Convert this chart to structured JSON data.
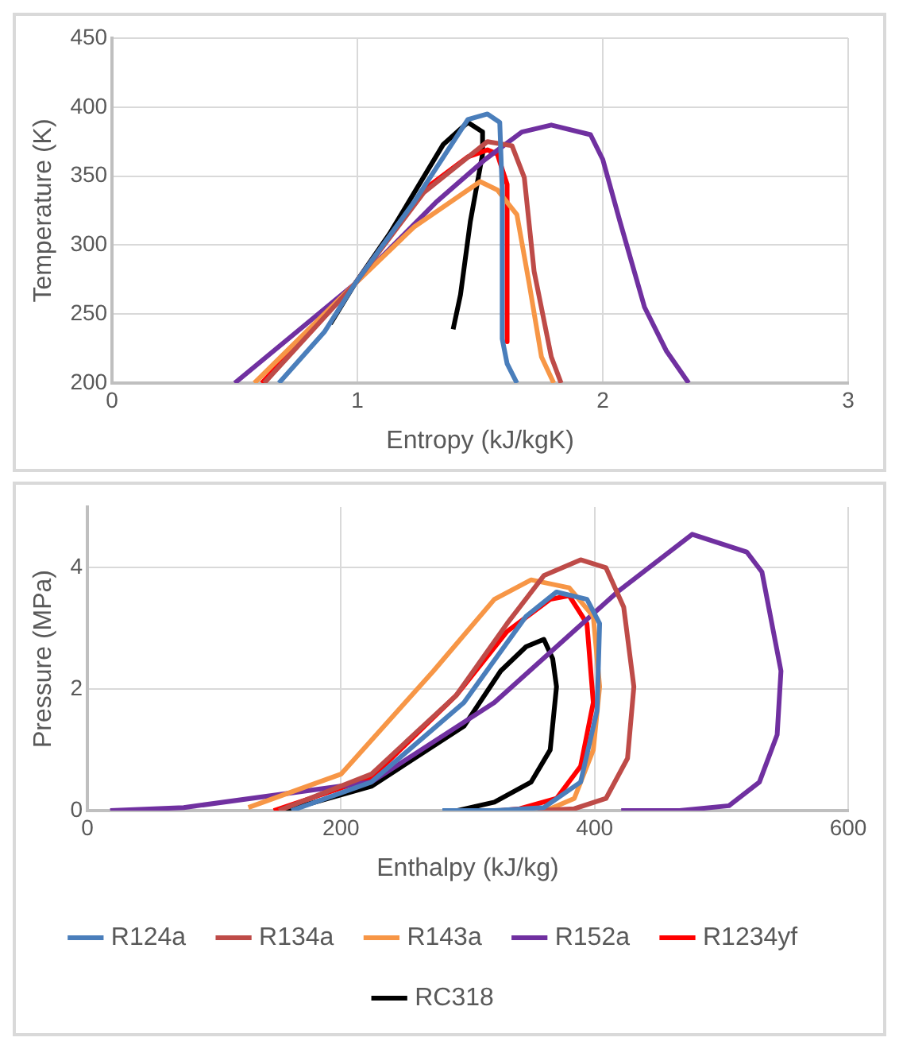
{
  "chart_data": [
    {
      "type": "line",
      "xlabel": "Entropy (kJ/kgK)",
      "ylabel": "Temperature (K)",
      "xlim": [
        0,
        3
      ],
      "xticks": [
        0,
        1,
        2,
        3
      ],
      "ylim": [
        200,
        450
      ],
      "yticks": [
        200,
        250,
        300,
        350,
        400,
        450
      ],
      "grid": true,
      "marker": "none",
      "line_style": "solid",
      "series": [
        {
          "color": "#4a7ebb",
          "x": [
            0.68,
            0.865,
            0.99,
            1.23,
            1.45,
            1.53,
            1.58,
            1.59,
            1.59,
            1.61,
            1.65
          ],
          "values": [
            200,
            237,
            272,
            331,
            391,
            395,
            389,
            340,
            232,
            214,
            200
          ]
        },
        {
          "color": "#be4b48",
          "x": [
            0.62,
            0.99,
            1.27,
            1.53,
            1.63,
            1.68,
            1.72,
            1.79,
            1.83
          ],
          "values": [
            200,
            272,
            338,
            375,
            372,
            349,
            281,
            219,
            200
          ]
        },
        {
          "color": "#f79646",
          "x": [
            0.58,
            0.99,
            1.23,
            1.5,
            1.57,
            1.65,
            1.7,
            1.75,
            1.8
          ],
          "values": [
            200,
            272,
            313,
            346,
            340,
            322,
            272,
            219,
            200
          ]
        },
        {
          "color": "#7030a0",
          "x": [
            0.5,
            0.99,
            1.32,
            1.52,
            1.67,
            1.79,
            1.95,
            2.0,
            2.07,
            2.17,
            2.26,
            2.35
          ],
          "values": [
            200,
            272,
            331,
            362,
            382,
            387,
            380,
            362,
            317,
            255,
            223,
            200
          ]
        },
        {
          "color": "#ff0000",
          "x": [
            0.61,
            0.99,
            1.27,
            1.45,
            1.53,
            1.57,
            1.61,
            1.61
          ],
          "values": [
            200,
            272,
            340,
            364,
            369,
            366,
            344,
            230
          ]
        },
        {
          "color": "#000000",
          "x": [
            0.89,
            0.99,
            1.13,
            1.35,
            1.45,
            1.51,
            1.51,
            1.46,
            1.42,
            1.39
          ],
          "values": [
            243,
            272,
            308,
            373,
            389,
            382,
            366,
            317,
            264,
            239
          ]
        }
      ]
    },
    {
      "type": "line",
      "xlabel": "Enthalpy (kJ/kg)",
      "ylabel": "Pressure (MPa)",
      "xlim": [
        0,
        600
      ],
      "xticks": [
        0,
        200,
        400,
        600
      ],
      "ylim": [
        0,
        5
      ],
      "yticks": [
        0,
        2,
        4
      ],
      "grid": true,
      "marker": "none",
      "line_style": "solid",
      "legend": "bottom",
      "series": [
        {
          "name": "R124a",
          "color": "#4a7ebb",
          "x": [
            161,
            224,
            297,
            346,
            370,
            394,
            404,
            402,
            389,
            360,
            321,
            280
          ],
          "values": [
            0,
            0.47,
            1.78,
            3.2,
            3.6,
            3.48,
            3.08,
            1.65,
            0.47,
            0.05,
            0,
            0
          ]
        },
        {
          "name": "R134a",
          "color": "#be4b48",
          "x": [
            151,
            224,
            291,
            331,
            360,
            389,
            409,
            423,
            431,
            426,
            409,
            384,
            355
          ],
          "values": [
            0,
            0.6,
            1.9,
            3.08,
            3.87,
            4.13,
            4.0,
            3.35,
            2.04,
            0.86,
            0.2,
            0.03,
            0
          ]
        },
        {
          "name": "R143a",
          "color": "#f79646",
          "x": [
            127,
            200,
            273,
            321,
            350,
            380,
            399,
            404,
            399,
            384,
            365,
            326
          ],
          "values": [
            0.05,
            0.6,
            2.3,
            3.48,
            3.8,
            3.67,
            3.2,
            2.04,
            1.0,
            0.2,
            0.03,
            0
          ]
        },
        {
          "name": "R152a",
          "color": "#7030a0",
          "x": [
            18,
            76,
            224,
            321,
            418,
            477,
            520,
            532,
            547,
            544,
            530,
            506,
            467,
            421
          ],
          "values": [
            0,
            0.05,
            0.47,
            1.78,
            3.6,
            4.55,
            4.26,
            3.93,
            2.3,
            1.25,
            0.47,
            0.08,
            0,
            0
          ]
        },
        {
          "name": "R1234yf",
          "color": "#ff0000",
          "x": [
            147,
            224,
            291,
            331,
            365,
            380,
            394,
            399,
            389,
            370,
            341,
            326
          ],
          "values": [
            0,
            0.54,
            1.9,
            2.95,
            3.48,
            3.54,
            3.08,
            1.78,
            0.73,
            0.2,
            0.03,
            0
          ]
        },
        {
          "name": "RC318",
          "color": "#000000",
          "x": [
            156,
            224,
            297,
            326,
            346,
            360,
            367,
            370,
            365,
            350,
            321,
            292
          ],
          "values": [
            0,
            0.4,
            1.39,
            2.3,
            2.7,
            2.82,
            2.5,
            2.04,
            1.0,
            0.47,
            0.14,
            0
          ]
        }
      ]
    }
  ]
}
